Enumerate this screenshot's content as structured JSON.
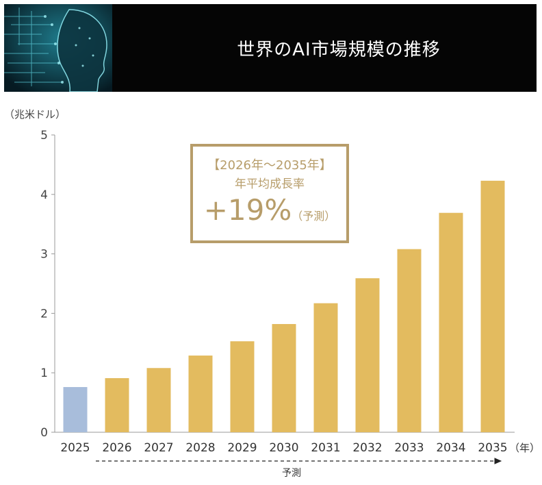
{
  "header": {
    "title": "世界のAI市場規模の推移"
  },
  "unit_label": "（兆米ドル）",
  "callout": {
    "period": "【2026年～2035年】",
    "metric": "年平均成長率",
    "rate": "+19%",
    "note": "（予測）"
  },
  "forecast_label": "予測",
  "chart_data": {
    "type": "bar",
    "title": "世界のAI市場規模の推移",
    "ylabel": "（兆米ドル）",
    "xlabel_suffix": "（年）",
    "ylim": [
      0,
      5
    ],
    "yticks": [
      0,
      1,
      2,
      3,
      4,
      5
    ],
    "categories": [
      "2025",
      "2026",
      "2027",
      "2028",
      "2029",
      "2030",
      "2031",
      "2032",
      "2033",
      "2034",
      "2035"
    ],
    "values": [
      0.76,
      0.91,
      1.08,
      1.29,
      1.53,
      1.82,
      2.17,
      2.59,
      3.08,
      3.69,
      4.23
    ],
    "colors": {
      "actual": "#a8bddb",
      "forecast": "#e3bb5f"
    },
    "grid": false,
    "legend": "none"
  }
}
